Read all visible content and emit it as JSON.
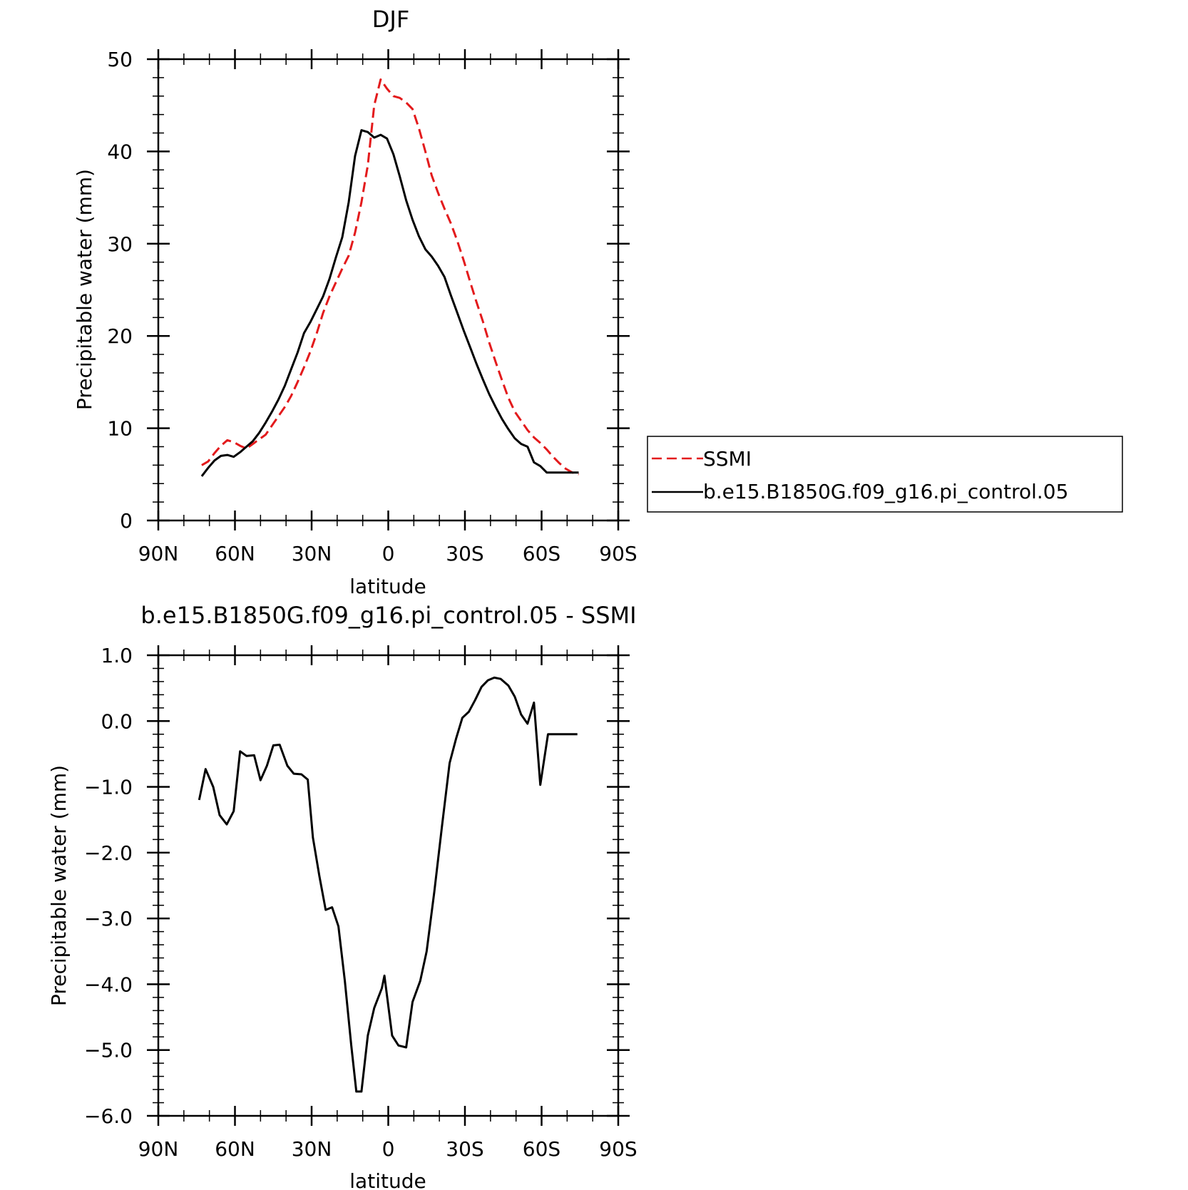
{
  "chart_data": [
    {
      "type": "line",
      "title": "DJF",
      "xlabel": "latitude",
      "ylabel": "Precipitable water (mm)",
      "xlim": [
        -90,
        90
      ],
      "ylim": [
        0,
        50
      ],
      "x_ticks": [
        -90,
        -60,
        -30,
        0,
        30,
        60,
        90
      ],
      "x_tick_labels": [
        "90N",
        "60N",
        "30N",
        "0",
        "30S",
        "60S",
        "90S"
      ],
      "y_ticks": [
        0,
        10,
        20,
        30,
        40,
        50
      ],
      "y_tick_labels": [
        "0",
        "10",
        "20",
        "30",
        "40",
        "50"
      ],
      "legend_position": "right",
      "series": [
        {
          "name": "SSMI",
          "color": "#e31a1c",
          "dashed": true,
          "x": [
            -75.5,
            -73,
            -70.5,
            -68,
            -65.5,
            -63,
            -60.5,
            -58,
            -55.5,
            -53,
            -50.5,
            -48,
            -45.5,
            -43,
            -40.5,
            -38,
            -35.5,
            -33,
            -30.5,
            -28,
            -25.5,
            -23,
            -20.5,
            -18,
            -15.5,
            -13,
            -10.5,
            -8,
            -5.5,
            -3,
            -0.5,
            2,
            4.5,
            7,
            9.5,
            12,
            14.5,
            17,
            19.5,
            22,
            24.5,
            27,
            29.5,
            32,
            34.5,
            37,
            39.5,
            42,
            44.5,
            47,
            49.5,
            52,
            54.5,
            57,
            59.5,
            62,
            64.5,
            67,
            69.5,
            72,
            74.5,
            77
          ],
          "values": [
            5.5,
            6.0,
            6.4,
            7.3,
            8.1,
            8.7,
            8.5,
            8.1,
            7.8,
            8.3,
            8.8,
            9.3,
            10.3,
            11.3,
            12.3,
            13.5,
            15.0,
            16.6,
            18.3,
            20.3,
            22.5,
            24.3,
            25.8,
            27.3,
            28.7,
            31.2,
            34.5,
            38.5,
            45.0,
            47.8,
            46.8,
            46.0,
            45.8,
            45.3,
            44.6,
            42.5,
            40.0,
            37.4,
            35.5,
            33.8,
            32.2,
            30.3,
            28.2,
            25.9,
            23.7,
            21.6,
            19.3,
            17.2,
            15.2,
            13.3,
            11.8,
            10.8,
            9.8,
            9.0,
            8.4,
            7.7,
            6.9,
            6.2,
            5.6,
            5.2,
            5.0,
            5.0
          ],
          "visible_range": [
            -75,
            75
          ]
        },
        {
          "name": "b.e15.B1850G.f09_g16.pi_control.05",
          "color": "#000000",
          "dashed": false,
          "x": [
            -73,
            -70.5,
            -68,
            -65.5,
            -63,
            -60.5,
            -58,
            -55.5,
            -53,
            -50.5,
            -48,
            -45.5,
            -43,
            -40.5,
            -38,
            -35.5,
            -33,
            -30.5,
            -28,
            -25.5,
            -23,
            -20.5,
            -18,
            -15.5,
            -13,
            -10.5,
            -8,
            -5.5,
            -3,
            -0.5,
            2,
            4.5,
            7,
            9.5,
            12,
            14.5,
            17,
            19.5,
            22,
            24.5,
            27,
            29.5,
            32,
            34.5,
            37,
            39.5,
            42,
            44.5,
            47,
            49.5,
            52,
            54.5,
            57,
            59.5,
            62,
            64.5,
            67,
            69.5,
            72,
            74.5,
            77
          ],
          "values": [
            4.8,
            5.7,
            6.5,
            7.0,
            7.1,
            6.9,
            7.4,
            8.0,
            8.6,
            9.5,
            10.6,
            11.8,
            13.1,
            14.6,
            16.4,
            18.2,
            20.3,
            21.5,
            22.9,
            24.3,
            26.2,
            28.5,
            30.7,
            34.5,
            39.5,
            42.3,
            42.1,
            41.5,
            41.8,
            41.4,
            39.7,
            37.3,
            34.7,
            32.6,
            30.8,
            29.4,
            28.6,
            27.6,
            26.4,
            24.4,
            22.5,
            20.6,
            18.8,
            17.0,
            15.3,
            13.7,
            12.3,
            11.0,
            9.9,
            8.9,
            8.3,
            8.0,
            6.3,
            5.9,
            5.2,
            5.2,
            5.2,
            5.2,
            5.2,
            5.2,
            5.2
          ],
          "visible_range": [
            -73,
            76
          ]
        }
      ]
    },
    {
      "type": "line",
      "title": "b.e15.B1850G.f09_g16.pi_control.05 - SSMI",
      "xlabel": "latitude",
      "ylabel": "Precipitable water (mm)",
      "xlim": [
        -90,
        90
      ],
      "ylim": [
        -6,
        1
      ],
      "x_ticks": [
        -90,
        -60,
        -30,
        0,
        30,
        60,
        90
      ],
      "x_tick_labels": [
        "90N",
        "60N",
        "30N",
        "0",
        "30S",
        "60S",
        "90S"
      ],
      "y_ticks": [
        -6,
        -5,
        -4,
        -3,
        -2,
        -1,
        0,
        1
      ],
      "y_tick_labels": [
        "-6.0",
        "-5.0",
        "-4.0",
        "-3.0",
        "-2.0",
        "-1.0",
        "0.0",
        "1.0"
      ],
      "series": [
        {
          "color": "#000000",
          "dashed": false,
          "x": [
            -74,
            -71.5,
            -68.5,
            -66,
            -63.2,
            -60.5,
            -58,
            -55.5,
            -52.5,
            -50,
            -47.5,
            -45,
            -42.5,
            -39.5,
            -37,
            -34,
            -31.5,
            -29.5,
            -27,
            -24.5,
            -22,
            -19.5,
            -17,
            -14.5,
            -12.5,
            -10.5,
            -8,
            -5.5,
            -2.5,
            -1.5,
            1.5,
            4,
            7,
            9.5,
            12.5,
            15,
            18,
            21,
            24,
            26.5,
            29,
            31.5,
            34,
            36.5,
            39,
            41.5,
            44,
            47,
            49.5,
            52,
            54.5,
            57,
            59.5,
            62.5,
            65,
            68,
            71,
            74
          ],
          "values": [
            -1.2,
            -0.73,
            -1.0,
            -1.43,
            -1.57,
            -1.37,
            -0.46,
            -0.53,
            -0.52,
            -0.9,
            -0.68,
            -0.37,
            -0.36,
            -0.68,
            -0.8,
            -0.81,
            -0.89,
            -1.77,
            -2.35,
            -2.87,
            -2.83,
            -3.12,
            -3.95,
            -4.92,
            -5.63,
            -5.63,
            -4.78,
            -4.36,
            -4.06,
            -3.87,
            -4.78,
            -4.93,
            -4.96,
            -4.27,
            -3.95,
            -3.5,
            -2.6,
            -1.6,
            -0.64,
            -0.27,
            0.05,
            0.14,
            0.32,
            0.52,
            0.62,
            0.66,
            0.64,
            0.54,
            0.37,
            0.1,
            -0.04,
            0.28,
            -0.97,
            -0.2,
            -0.2,
            -0.2,
            -0.2,
            -0.2
          ],
          "visible_range": [
            -74,
            74
          ]
        }
      ]
    }
  ]
}
